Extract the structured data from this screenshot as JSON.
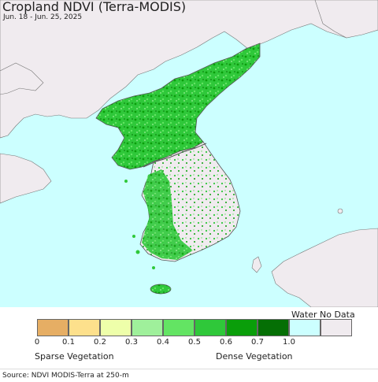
{
  "header": {
    "title": "Cropland NDVI (Terra-MODIS)",
    "date_range": "Jun. 18 - Jun. 25, 2025"
  },
  "legend": {
    "classes": [
      {
        "value": "0",
        "color": "#e6ae64"
      },
      {
        "value": "0.1",
        "color": "#fde08c"
      },
      {
        "value": "0.2",
        "color": "#eeffaa"
      },
      {
        "value": "0.3",
        "color": "#9ff09b"
      },
      {
        "value": "0.4",
        "color": "#63e463"
      },
      {
        "value": "0.5",
        "color": "#2fc83a"
      },
      {
        "value": "0.6",
        "color": "#0a9e0a"
      },
      {
        "value": "0.7",
        "color": "#056f05"
      },
      {
        "value": "1.0",
        "color": "#ccffff"
      }
    ],
    "water_label": "Water",
    "water_color": "#ccffff",
    "nodata_label": "No Data",
    "nodata_color": "#f0ebef",
    "sparse_label": "Sparse Vegetation",
    "dense_label": "Dense Vegetation"
  },
  "footer": {
    "source": "Source: NDVI MODIS-Terra at 250-m"
  },
  "map": {
    "sea_color": "#ccffff",
    "land_color": "#f0ebef",
    "border_color": "#555555"
  }
}
